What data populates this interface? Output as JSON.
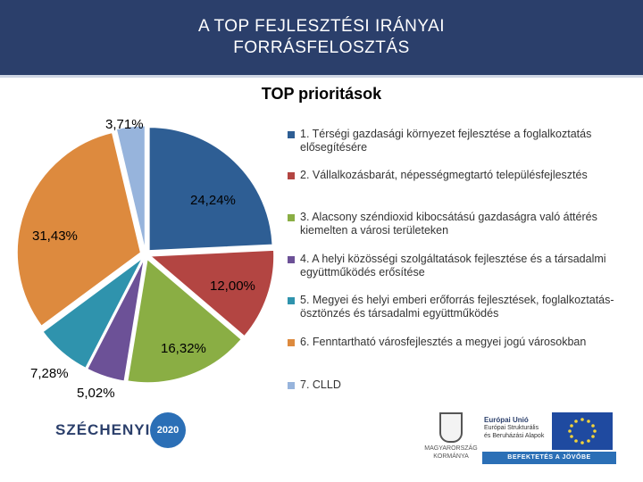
{
  "header": {
    "title_line1": "A TOP FEJLESZTÉSI IRÁNYAI",
    "title_line2": "FORRÁSFELOSZTÁS"
  },
  "chart_data": {
    "type": "pie",
    "title": "TOP prioritások",
    "slices": [
      {
        "label": "1. Térségi gazdasági környezet fejlesztése a foglalkoztatás elősegítésére",
        "value": 24.24,
        "display": "24,24%",
        "color": "#2e5e94"
      },
      {
        "label": "2. Vállalkozásbarát, népességmegtartó településfejlesztés",
        "value": 12.0,
        "display": "12,00%",
        "color": "#b34542"
      },
      {
        "label": "3. Alacsony széndioxid kibocsátású gazdaságra való áttérés kiemelten a városi területeken",
        "value": 16.32,
        "display": "16,32%",
        "color": "#8aae44"
      },
      {
        "label": "4. A helyi közösségi szolgáltatások fejlesztése és a társadalmi együttműködés erősítése",
        "value": 5.02,
        "display": "5,02%",
        "color": "#6c5197"
      },
      {
        "label": "5. Megyei és helyi emberi erőforrás fejlesztések, foglalkoztatás-ösztönzés és társadalmi együttműködés",
        "value": 7.28,
        "display": "7,28%",
        "color": "#2f93ad"
      },
      {
        "label": "6. Fenntartható városfejlesztés a megyei jogú városokban",
        "value": 31.43,
        "display": "31,43%",
        "color": "#dd8a3e"
      },
      {
        "label": "7. CLLD",
        "value": 3.71,
        "display": "3,71%",
        "color": "#97b4dc"
      }
    ],
    "legend_position": "right"
  },
  "footer": {
    "szechenyi": "SZÉCHENYI",
    "szechenyi_2020": "2020",
    "gov_line1": "MAGYARORSZÁG",
    "gov_line2": "KORMÁNYA",
    "eu_title": "Európai Unió",
    "eu_line1": "Európai Strukturális",
    "eu_line2": "és Beruházási Alapok",
    "eu_tagline": "BEFEKTETÉS A JÖVŐBE"
  }
}
